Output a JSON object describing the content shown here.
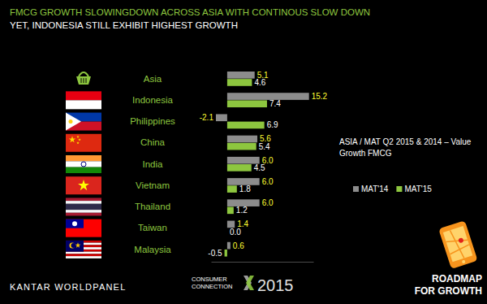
{
  "chart_data": {
    "type": "bar",
    "orientation": "horizontal",
    "title": "FMCG GROWTH SLOWINGDOWN ACROSS ASIA WITH CONTINOUS SLOW DOWN",
    "subtitle": "YET, INDONESIA STILL EXHIBIT HIGHEST GROWTH",
    "categories": [
      "Asia",
      "Indonesia",
      "Philippines",
      "China",
      "India",
      "Vietnam",
      "Thailand",
      "Taiwan",
      "Malaysia"
    ],
    "series": [
      {
        "name": "MAT'14",
        "color": "#8c8c8c",
        "values": [
          5.1,
          15.2,
          -2.1,
          5.6,
          6.0,
          6.0,
          6.0,
          1.4,
          0.6
        ],
        "value_labels": [
          "5.1",
          "15.2",
          "-2.1",
          "5.6",
          "6.0",
          "6.0",
          "6.0",
          "1.4",
          "0.6"
        ]
      },
      {
        "name": "MAT'15",
        "color": "#8dc63f",
        "values": [
          4.6,
          7.4,
          6.9,
          5.4,
          4.5,
          1.8,
          1.2,
          0.0,
          -0.5
        ],
        "value_labels": [
          "4.6",
          "7.4",
          "6.9",
          "5.4",
          "4.5",
          "1.8",
          "1.2",
          "0.0",
          "-0.5"
        ]
      }
    ],
    "xlim": [
      -3,
      16
    ],
    "tick_labels": "y",
    "data_labels": true,
    "legend": "right",
    "annotations": [
      "ASIA / MAT Q2 2015 & 2014 – Value Growth FMCG",
      "KANTAR WORLDPANEL",
      "CONSUMER",
      "CONNECTION",
      "2015",
      "ROADMAP",
      "FOR GROWTH"
    ]
  }
}
